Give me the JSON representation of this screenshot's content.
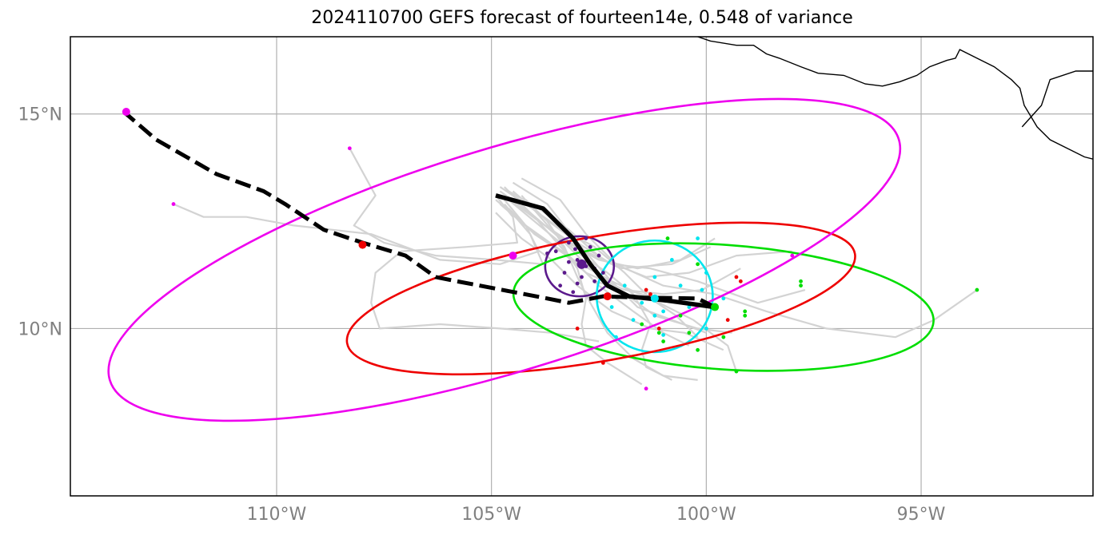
{
  "title": "2024110700 GEFS forecast of fourteen14e, 0.548 of variance",
  "axes": {
    "lon_range": [
      -114.8,
      -91.0
    ],
    "lat_range": [
      6.1,
      16.8
    ],
    "lon_ticks": [
      {
        "value": -110,
        "label": "110°W"
      },
      {
        "value": -105,
        "label": "105°W"
      },
      {
        "value": -100,
        "label": "100°W"
      },
      {
        "value": -95,
        "label": "95°W"
      }
    ],
    "lat_ticks": [
      {
        "value": 15,
        "label": "15°N"
      },
      {
        "value": 10,
        "label": "10°N"
      }
    ],
    "grid": true
  },
  "colors": {
    "member_track": "#d3d3d3",
    "mean_track": "#000000",
    "coastline": "#000000",
    "grid": "#b0b0b0",
    "purple": "#5b1a8c",
    "cyan": "#00e5ee",
    "green": "#00dd00",
    "red": "#ee0000",
    "magenta": "#ee00ee"
  },
  "chart_data": {
    "type": "map",
    "mean_track": {
      "solid": [
        [
          -104.9,
          13.1
        ],
        [
          -103.8,
          12.8
        ],
        [
          -103.1,
          12.1
        ],
        [
          -102.7,
          11.5
        ],
        [
          -102.3,
          11.0
        ],
        [
          -101.8,
          10.75
        ],
        [
          -100.9,
          10.65
        ],
        [
          -99.8,
          10.5
        ]
      ],
      "dashed": [
        [
          -99.8,
          10.5
        ],
        [
          -100.2,
          10.7
        ],
        [
          -101.5,
          10.72
        ],
        [
          -102.4,
          10.75
        ],
        [
          -103.2,
          10.6
        ],
        [
          -103.7,
          10.7
        ],
        [
          -105.8,
          11.1
        ],
        [
          -106.3,
          11.2
        ],
        [
          -107.0,
          11.7
        ],
        [
          -108.0,
          12.0
        ],
        [
          -108.9,
          12.3
        ],
        [
          -109.8,
          12.9
        ],
        [
          -110.3,
          13.2
        ],
        [
          -111.4,
          13.6
        ],
        [
          -112.1,
          14.0
        ],
        [
          -112.8,
          14.4
        ],
        [
          -113.5,
          15.0
        ]
      ]
    },
    "forecast_positions": [
      {
        "color": "purple",
        "lon": -102.9,
        "lat": 11.5,
        "ellipse": {
          "rx_deg": 0.8,
          "ry_deg": 0.7,
          "tilt_deg": 0
        }
      },
      {
        "color": "cyan",
        "lon": -101.2,
        "lat": 10.7,
        "ellipse": {
          "rx_deg": 1.35,
          "ry_deg": 1.3,
          "tilt_deg": 0
        }
      },
      {
        "color": "green",
        "lon": -99.8,
        "lat": 10.5,
        "ellipse": {
          "rx_deg": 4.9,
          "ry_deg": 1.45,
          "tilt_deg": 4
        }
      },
      {
        "color": "red",
        "lon": -102.3,
        "lat": 10.75,
        "ellipse": {
          "rx_deg": 6.0,
          "ry_deg": 1.45,
          "tilt_deg": -10
        }
      },
      {
        "color": "red",
        "lon": -108.0,
        "lat": 11.95,
        "ellipse": null
      },
      {
        "color": "magenta",
        "lon": -113.5,
        "lat": 15.05,
        "ellipse": {
          "rx_deg": 9.6,
          "ry_deg": 2.6,
          "tilt_deg": -17
        }
      },
      {
        "color": "magenta",
        "lon": -104.5,
        "lat": 11.7,
        "ellipse": null
      }
    ],
    "ellipse_center": {
      "lon": -104.0,
      "lat": 10.9
    },
    "member_tracks": [
      [
        [
          -104.7,
          13.3
        ],
        [
          -104.0,
          12.6
        ],
        [
          -103.3,
          11.8
        ],
        [
          -102.6,
          11.1
        ],
        [
          -101.5,
          10.8
        ],
        [
          -100.5,
          10.6
        ]
      ],
      [
        [
          -104.9,
          13.0
        ],
        [
          -104.2,
          12.4
        ],
        [
          -103.5,
          11.9
        ],
        [
          -102.8,
          11.3
        ],
        [
          -101.9,
          10.9
        ],
        [
          -101.0,
          10.8
        ],
        [
          -100.1,
          10.9
        ],
        [
          -99.2,
          11.4
        ]
      ],
      [
        [
          -104.5,
          13.4
        ],
        [
          -103.7,
          12.9
        ],
        [
          -103.0,
          12.0
        ],
        [
          -102.3,
          11.2
        ],
        [
          -101.6,
          10.5
        ],
        [
          -100.8,
          10.2
        ],
        [
          -100.0,
          9.9
        ]
      ],
      [
        [
          -104.8,
          12.9
        ],
        [
          -104.1,
          12.3
        ],
        [
          -103.2,
          11.7
        ],
        [
          -102.5,
          11.0
        ],
        [
          -101.7,
          10.4
        ],
        [
          -101.0,
          9.9
        ],
        [
          -100.4,
          9.6
        ]
      ],
      [
        [
          -104.6,
          13.2
        ],
        [
          -103.9,
          12.8
        ],
        [
          -103.2,
          12.3
        ],
        [
          -102.4,
          11.6
        ],
        [
          -101.4,
          11.2
        ],
        [
          -100.4,
          11.3
        ],
        [
          -99.3,
          11.7
        ],
        [
          -98.0,
          11.8
        ]
      ],
      [
        [
          -104.3,
          13.5
        ],
        [
          -103.4,
          13.0
        ],
        [
          -102.8,
          12.2
        ],
        [
          -102.1,
          11.5
        ],
        [
          -101.0,
          11.0
        ],
        [
          -99.8,
          10.8
        ],
        [
          -98.6,
          10.4
        ],
        [
          -97.2,
          10.0
        ],
        [
          -95.6,
          9.8
        ],
        [
          -94.7,
          10.2
        ],
        [
          -93.7,
          10.9
        ]
      ],
      [
        [
          -104.9,
          12.7
        ],
        [
          -104.3,
          12.1
        ],
        [
          -103.6,
          11.6
        ],
        [
          -103.0,
          11.0
        ],
        [
          -102.2,
          10.4
        ],
        [
          -101.3,
          10.0
        ],
        [
          -100.5,
          9.9
        ],
        [
          -99.6,
          9.5
        ]
      ],
      [
        [
          -104.7,
          13.1
        ],
        [
          -103.9,
          12.5
        ],
        [
          -103.0,
          11.9
        ],
        [
          -102.0,
          11.4
        ],
        [
          -100.8,
          11.5
        ],
        [
          -99.9,
          11.9
        ]
      ],
      [
        [
          -104.4,
          12.9
        ],
        [
          -103.5,
          12.2
        ],
        [
          -102.7,
          11.4
        ],
        [
          -102.0,
          10.9
        ],
        [
          -101.2,
          10.3
        ],
        [
          -100.2,
          10.0
        ],
        [
          -99.4,
          9.9
        ]
      ],
      [
        [
          -104.2,
          13.0
        ],
        [
          -103.7,
          12.5
        ],
        [
          -103.3,
          11.9
        ],
        [
          -103.0,
          11.2
        ],
        [
          -102.7,
          10.6
        ],
        [
          -102.3,
          9.9
        ],
        [
          -101.7,
          9.3
        ],
        [
          -101.0,
          8.9
        ],
        [
          -100.2,
          8.8
        ]
      ],
      [
        [
          -104.8,
          13.2
        ],
        [
          -104.1,
          12.7
        ],
        [
          -103.4,
          12.1
        ],
        [
          -102.5,
          11.6
        ],
        [
          -101.6,
          11.4
        ],
        [
          -100.6,
          11.6
        ],
        [
          -99.8,
          12.1
        ]
      ],
      [
        [
          -104.6,
          12.8
        ],
        [
          -104.0,
          12.2
        ],
        [
          -103.1,
          11.6
        ],
        [
          -102.2,
          11.1
        ],
        [
          -101.1,
          10.6
        ],
        [
          -100.3,
          10.2
        ],
        [
          -99.5,
          9.6
        ],
        [
          -99.3,
          9.0
        ]
      ],
      [
        [
          -104.7,
          13.0
        ],
        [
          -104.2,
          12.4
        ],
        [
          -103.9,
          11.8
        ],
        [
          -104.8,
          11.5
        ],
        [
          -106.2,
          11.6
        ],
        [
          -107.8,
          12.2
        ],
        [
          -109.6,
          12.4
        ],
        [
          -110.7,
          12.6
        ],
        [
          -111.7,
          12.6
        ],
        [
          -112.4,
          12.9
        ]
      ],
      [
        [
          -104.9,
          13.1
        ],
        [
          -104.5,
          12.6
        ],
        [
          -104.4,
          12.0
        ],
        [
          -105.6,
          11.9
        ],
        [
          -107.1,
          11.8
        ],
        [
          -107.7,
          11.3
        ],
        [
          -107.8,
          10.6
        ],
        [
          -107.6,
          10.0
        ],
        [
          -106.2,
          10.1
        ],
        [
          -104.8,
          10.0
        ],
        [
          -103.6,
          9.9
        ],
        [
          -102.5,
          9.7
        ]
      ],
      [
        [
          -104.7,
          12.9
        ],
        [
          -104.1,
          12.2
        ],
        [
          -103.8,
          11.5
        ],
        [
          -104.9,
          11.6
        ],
        [
          -106.3,
          11.7
        ],
        [
          -107.5,
          12.0
        ],
        [
          -108.2,
          12.4
        ],
        [
          -107.7,
          13.1
        ],
        [
          -108.3,
          14.2
        ]
      ],
      [
        [
          -104.5,
          13.2
        ],
        [
          -103.8,
          12.6
        ],
        [
          -103.0,
          12.0
        ],
        [
          -102.2,
          11.5
        ],
        [
          -101.3,
          11.4
        ],
        [
          -100.2,
          11.1
        ],
        [
          -98.8,
          10.6
        ],
        [
          -97.7,
          10.9
        ]
      ],
      [
        [
          -104.8,
          13.3
        ],
        [
          -104.2,
          12.9
        ],
        [
          -103.5,
          12.4
        ],
        [
          -102.6,
          11.9
        ],
        [
          -101.9,
          11.3
        ],
        [
          -101.3,
          10.7
        ],
        [
          -100.7,
          10.3
        ],
        [
          -100.2,
          9.8
        ]
      ],
      [
        [
          -104.3,
          13.1
        ],
        [
          -103.6,
          12.3
        ],
        [
          -102.9,
          11.7
        ],
        [
          -102.3,
          11.3
        ],
        [
          -101.7,
          10.8
        ],
        [
          -101.3,
          10.1
        ],
        [
          -101.5,
          9.5
        ],
        [
          -101.4,
          9.1
        ],
        [
          -100.8,
          8.8
        ]
      ],
      [
        [
          -104.6,
          13.0
        ],
        [
          -104.0,
          12.5
        ],
        [
          -103.4,
          12.0
        ],
        [
          -103.0,
          11.4
        ],
        [
          -102.8,
          10.7
        ],
        [
          -102.9,
          10.1
        ],
        [
          -102.8,
          9.6
        ],
        [
          -102.3,
          9.2
        ],
        [
          -101.5,
          8.7
        ]
      ]
    ],
    "member_points": {
      "purple": [
        [
          -103.2,
          12.0
        ],
        [
          -102.8,
          12.1
        ],
        [
          -103.5,
          11.8
        ],
        [
          -102.7,
          11.9
        ],
        [
          -103.0,
          11.6
        ],
        [
          -102.6,
          11.4
        ],
        [
          -103.3,
          11.3
        ],
        [
          -102.9,
          11.2
        ],
        [
          -103.4,
          11.0
        ],
        [
          -103.1,
          10.85
        ],
        [
          -102.4,
          11.3
        ],
        [
          -103.7,
          11.75
        ],
        [
          -103.0,
          11.05
        ],
        [
          -102.5,
          11.7
        ],
        [
          -102.8,
          11.45
        ],
        [
          -103.2,
          11.55
        ],
        [
          -102.6,
          11.1
        ],
        [
          -103.05,
          11.85
        ]
      ],
      "cyan": [
        [
          -100.2,
          12.1
        ],
        [
          -100.8,
          11.6
        ],
        [
          -100.0,
          11.3
        ],
        [
          -101.2,
          11.2
        ],
        [
          -101.9,
          11.0
        ],
        [
          -100.6,
          11.0
        ],
        [
          -100.1,
          10.9
        ],
        [
          -101.5,
          10.6
        ],
        [
          -102.2,
          10.5
        ],
        [
          -101.0,
          10.4
        ],
        [
          -100.4,
          10.5
        ],
        [
          -101.2,
          10.3
        ],
        [
          -101.7,
          10.2
        ],
        [
          -100.0,
          10.0
        ],
        [
          -101.0,
          9.85
        ],
        [
          -102.1,
          9.8
        ],
        [
          -99.6,
          10.7
        ],
        [
          -100.5,
          10.7
        ]
      ],
      "green": [
        [
          -100.9,
          12.1
        ],
        [
          -100.2,
          11.5
        ],
        [
          -97.8,
          11.0
        ],
        [
          -97.8,
          11.1
        ],
        [
          -93.7,
          10.9
        ],
        [
          -99.8,
          10.5
        ],
        [
          -99.1,
          10.4
        ],
        [
          -99.1,
          10.3
        ],
        [
          -101.5,
          10.1
        ],
        [
          -100.4,
          9.9
        ],
        [
          -101.1,
          9.9
        ],
        [
          -99.6,
          9.8
        ],
        [
          -100.2,
          9.5
        ],
        [
          -99.3,
          9.0
        ],
        [
          -100.6,
          10.3
        ],
        [
          -101.0,
          9.7
        ]
      ],
      "red": [
        [
          -101.4,
          10.9
        ],
        [
          -99.3,
          11.2
        ],
        [
          -99.2,
          11.1
        ],
        [
          -99.5,
          10.2
        ],
        [
          -101.1,
          10.0
        ],
        [
          -103.0,
          10.0
        ],
        [
          -102.4,
          9.2
        ],
        [
          -101.3,
          10.8
        ],
        [
          -102.4,
          10.75
        ]
      ],
      "magenta": [
        [
          -108.3,
          14.2
        ],
        [
          -112.4,
          12.9
        ],
        [
          -98.0,
          11.7
        ],
        [
          -101.4,
          8.6
        ]
      ]
    },
    "coastline": [
      [
        -100.2,
        16.8
      ],
      [
        -99.9,
        16.7
      ],
      [
        -99.3,
        16.6
      ],
      [
        -98.9,
        16.6
      ],
      [
        -98.6,
        16.4
      ],
      [
        -98.3,
        16.3
      ],
      [
        -97.8,
        16.1
      ],
      [
        -97.4,
        15.95
      ],
      [
        -96.8,
        15.9
      ],
      [
        -96.3,
        15.7
      ],
      [
        -95.9,
        15.65
      ],
      [
        -95.5,
        15.75
      ],
      [
        -95.1,
        15.9
      ],
      [
        -94.8,
        16.1
      ],
      [
        -94.4,
        16.25
      ],
      [
        -94.2,
        16.3
      ],
      [
        -94.1,
        16.5
      ],
      [
        -93.7,
        16.3
      ],
      [
        -93.3,
        16.1
      ],
      [
        -92.9,
        15.8
      ],
      [
        -92.7,
        15.6
      ],
      [
        -92.6,
        15.2
      ],
      [
        -92.3,
        14.7
      ],
      [
        -92.0,
        14.4
      ],
      [
        -91.6,
        14.2
      ],
      [
        -91.2,
        14.0
      ],
      [
        -91.0,
        13.95
      ]
    ],
    "border": [
      [
        -92.65,
        14.7
      ],
      [
        -92.2,
        15.2
      ],
      [
        -92.0,
        15.8
      ],
      [
        -91.4,
        16.0
      ],
      [
        -91.0,
        16.0
      ]
    ]
  }
}
